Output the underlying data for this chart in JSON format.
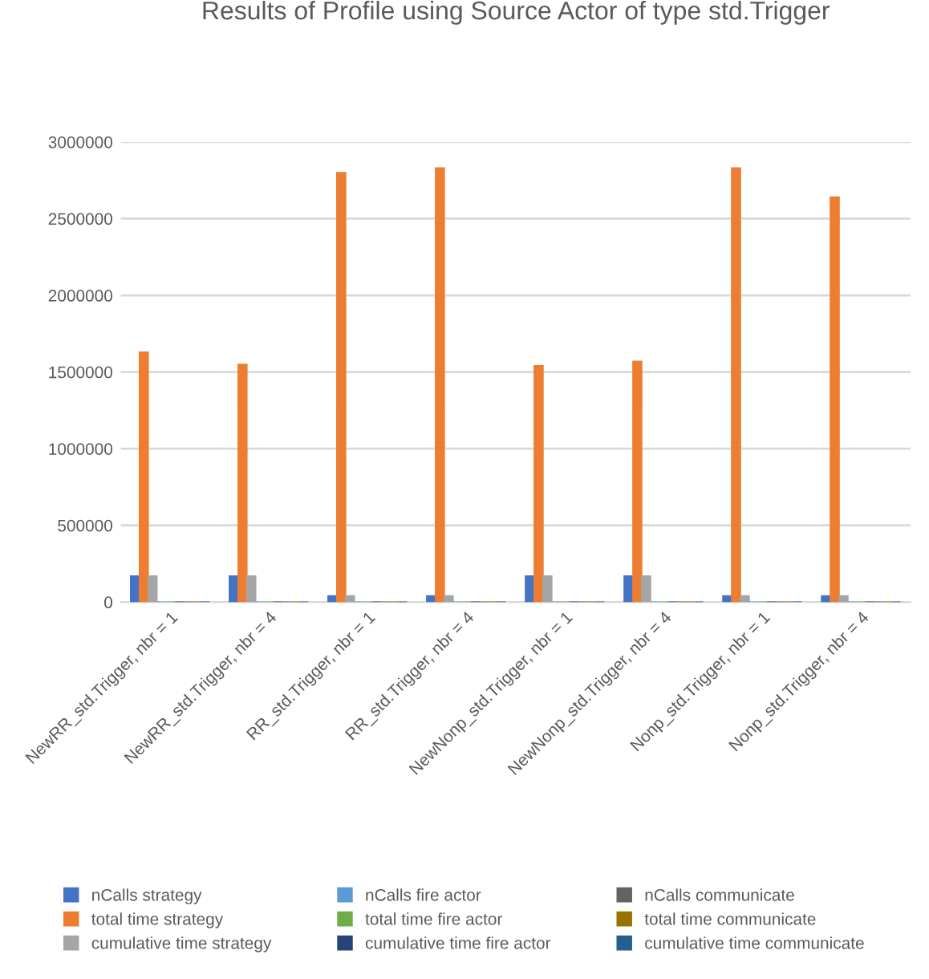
{
  "chart_data": {
    "type": "bar",
    "title": "Results of Profile using Source Actor of type std.Trigger",
    "categories": [
      "NewRR_std.Trigger, nbr = 1",
      "NewRR_std.Trigger, nbr = 4",
      "RR_std.Trigger, nbr = 1",
      "RR_std.Trigger, nbr = 4",
      "NewNonp_std.Trigger, nbr = 1",
      "NewNonp_std.Trigger, nbr = 4",
      "Nonp_std.Trigger, nbr = 1",
      "Nonp_std.Trigger, nbr = 4"
    ],
    "series": [
      {
        "name": "nCalls strategy",
        "color": "#4472c4",
        "values": [
          170000,
          170000,
          40000,
          40000,
          170000,
          170000,
          40000,
          40000
        ]
      },
      {
        "name": "total time strategy",
        "color": "#ed7d31",
        "values": [
          1630000,
          1550000,
          2800000,
          2830000,
          1540000,
          1570000,
          2830000,
          2640000
        ]
      },
      {
        "name": "cumulative time strategy",
        "color": "#a5a5a5",
        "values": [
          170000,
          170000,
          40000,
          40000,
          170000,
          170000,
          40000,
          40000
        ]
      },
      {
        "name": "nCalls fire actor",
        "color": "#5b9bd5",
        "values": [
          0,
          0,
          0,
          0,
          0,
          0,
          0,
          0
        ]
      },
      {
        "name": "total time fire actor",
        "color": "#70ad47",
        "values": [
          0,
          0,
          0,
          0,
          0,
          0,
          0,
          0
        ]
      },
      {
        "name": "cumulative time fire actor",
        "color": "#264478",
        "values": [
          0,
          0,
          0,
          0,
          0,
          0,
          0,
          0
        ]
      },
      {
        "name": "nCalls communicate",
        "color": "#636363",
        "values": [
          0,
          0,
          0,
          0,
          0,
          0,
          0,
          0
        ]
      },
      {
        "name": "total time communicate",
        "color": "#997300",
        "values": [
          0,
          0,
          0,
          0,
          0,
          0,
          0,
          0
        ]
      },
      {
        "name": "cumulative time communicate",
        "color": "#255e91",
        "values": [
          0,
          0,
          0,
          0,
          0,
          0,
          0,
          0
        ]
      }
    ],
    "ylim": [
      0,
      3000000
    ],
    "yticks": [
      0,
      500000,
      1000000,
      1500000,
      2000000,
      2500000,
      3000000
    ],
    "grid": "y",
    "legend": "bottom"
  }
}
